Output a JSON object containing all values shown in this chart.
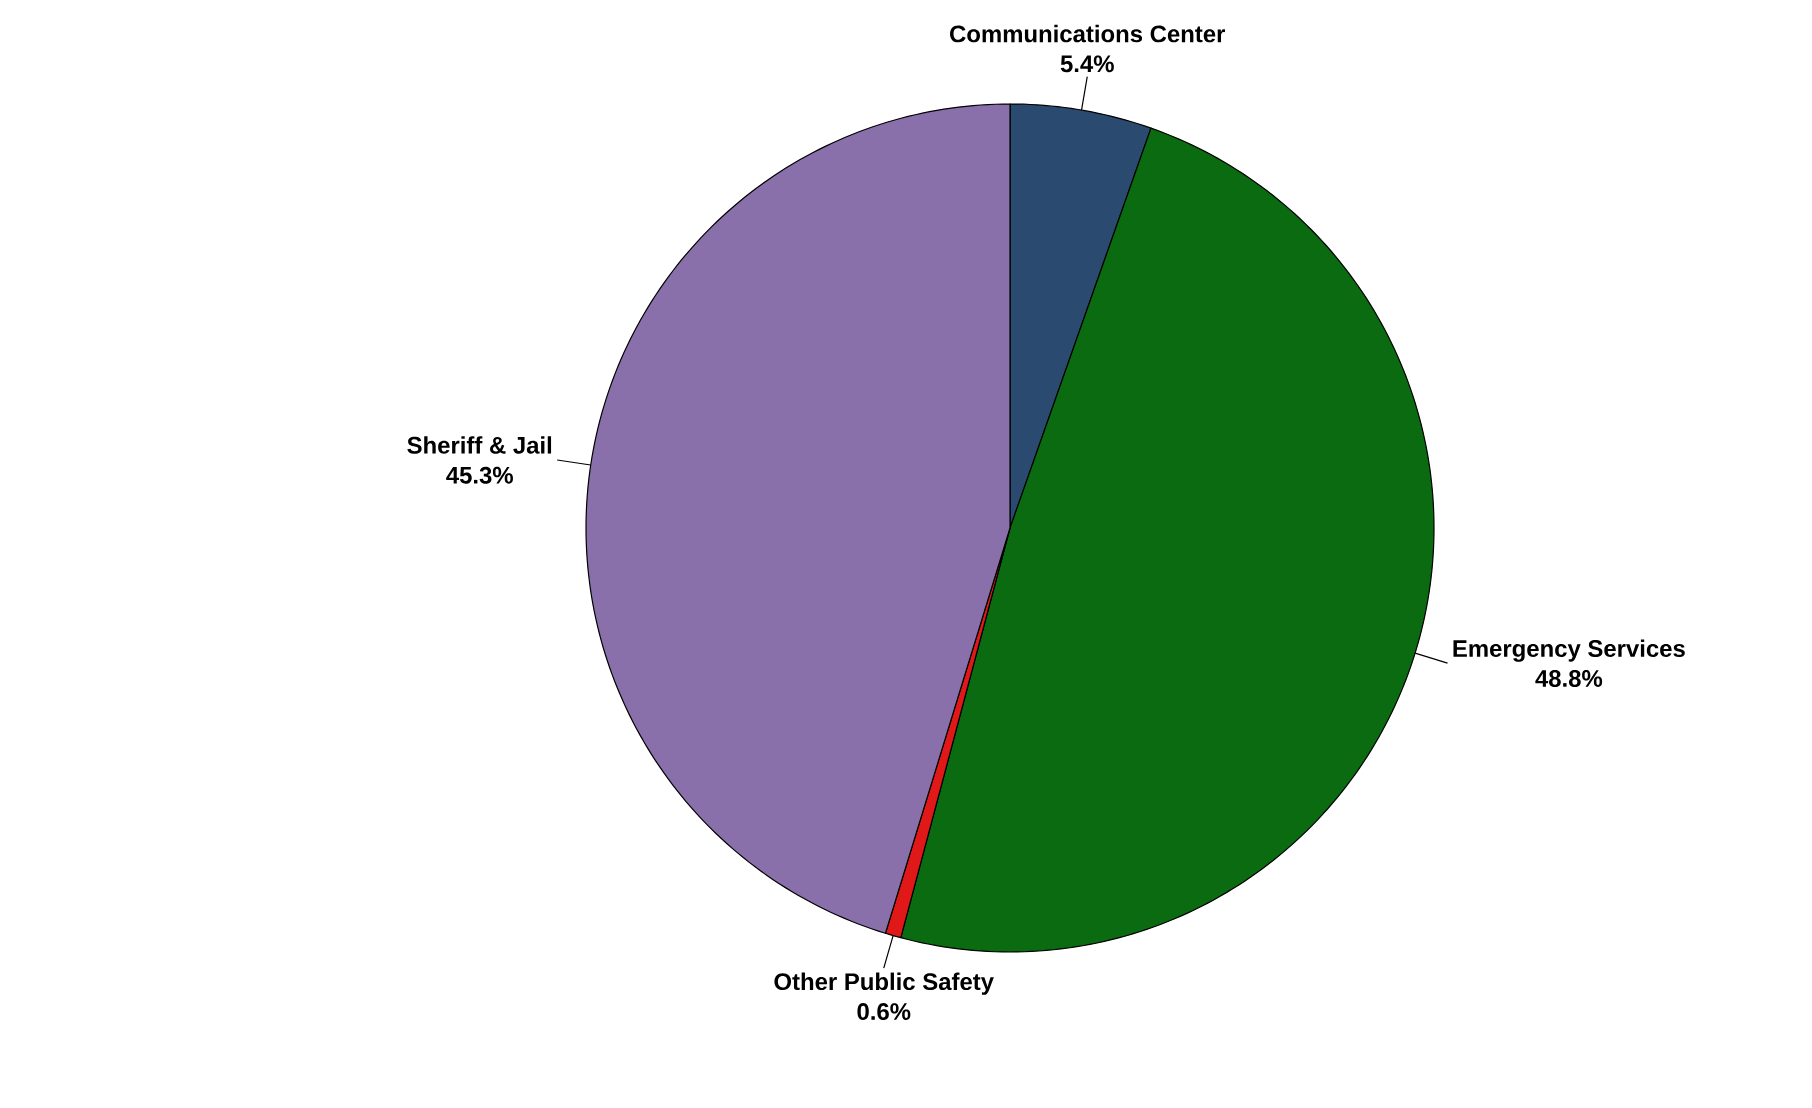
{
  "chart_data": {
    "type": "pie",
    "categories": [
      "Communications Center",
      "Emergency Services",
      "Other Public Safety",
      "Sheriff & Jail"
    ],
    "values": [
      5.4,
      48.8,
      0.6,
      45.3
    ],
    "colors": [
      "#2b4a6f",
      "#0b6b10",
      "#e01818",
      "#8a70ab"
    ],
    "value_labels": [
      "5.4%",
      "48.8%",
      "0.6%",
      "45.3%"
    ]
  }
}
